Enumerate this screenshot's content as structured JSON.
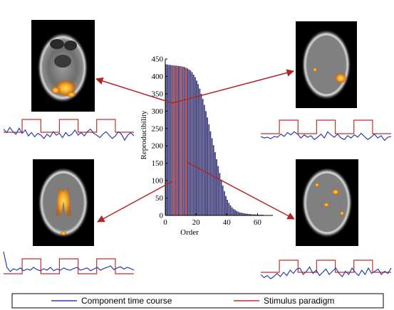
{
  "chart_data": {
    "type": "bar",
    "xlabel": "Order",
    "ylabel": "Reproducibility",
    "ylim": [
      0,
      450
    ],
    "xlim": [
      0,
      70
    ],
    "yticks": [
      0,
      50,
      100,
      150,
      200,
      250,
      300,
      350,
      400,
      450
    ],
    "xticks": [
      0,
      20,
      40,
      60
    ],
    "values": [
      435,
      434,
      433,
      433,
      432,
      432,
      431,
      431,
      430,
      430,
      429,
      428,
      427,
      425,
      423,
      420,
      417,
      412,
      405,
      398,
      388,
      378,
      365,
      350,
      335,
      318,
      300,
      282,
      262,
      242,
      222,
      202,
      182,
      162,
      142,
      122,
      103,
      86,
      70,
      56,
      45,
      36,
      29,
      23,
      19,
      16,
      13,
      11,
      9,
      8,
      7,
      6,
      5,
      5,
      4,
      4,
      3,
      3,
      3,
      2,
      2,
      2,
      2,
      2,
      1,
      1,
      1,
      1,
      1,
      1
    ],
    "highlighted_orders": [
      6,
      8,
      11,
      14
    ]
  },
  "time_courses": {
    "top_left": [
      0.15,
      0.35,
      0.05,
      0.3,
      0.45,
      0.1,
      0.4,
      0.2,
      0.55,
      0.35,
      0.6,
      0.4,
      0.5,
      0.7,
      0.45,
      0.6,
      0.3,
      0.5,
      0.4,
      0.65,
      0.35,
      0.55,
      0.45,
      0.2,
      0.5,
      0.35,
      0.55,
      0.3,
      0.15,
      0.4,
      0.5,
      0.65,
      0.45,
      0.3,
      0.5,
      0.7,
      0.55,
      0.3,
      0.45,
      0.8,
      0.5,
      0.35,
      0.55
    ],
    "top_right": [
      0.45,
      0.55,
      0.5,
      0.6,
      0.45,
      0.5,
      0.3,
      0.45,
      0.2,
      0.35,
      0.15,
      0.3,
      0.55,
      0.35,
      0.5,
      0.4,
      0.65,
      0.5,
      0.3,
      0.55,
      0.15,
      0.35,
      0.5,
      0.3,
      0.55,
      0.65,
      0.4,
      0.55,
      0.35,
      0.5,
      0.25,
      0.45,
      0.65,
      0.5,
      0.3,
      0.55,
      0.4,
      0.7,
      0.5,
      0.45
    ],
    "bottom_left": [
      0.05,
      0.6,
      0.75,
      0.65,
      0.7,
      0.62,
      0.72,
      0.66,
      0.7,
      0.6,
      0.68,
      0.72,
      0.65,
      0.7,
      0.6,
      0.72,
      0.66,
      0.7,
      0.62,
      0.68,
      0.7,
      0.64,
      0.6,
      0.7,
      0.66,
      0.62,
      0.72,
      0.66,
      0.6,
      0.7,
      0.64,
      0.6,
      0.55,
      0.68,
      0.62,
      0.58,
      0.66,
      0.6,
      0.64,
      0.7
    ],
    "bottom_right": [
      0.6,
      0.75,
      0.65,
      0.8,
      0.7,
      0.55,
      0.7,
      0.5,
      0.65,
      0.4,
      0.55,
      0.35,
      0.3,
      0.6,
      0.45,
      0.25,
      0.55,
      0.4,
      0.65,
      0.5,
      0.35,
      0.6,
      0.45,
      0.3,
      0.55,
      0.7,
      0.45,
      0.6,
      0.3,
      0.5,
      0.65,
      0.4,
      0.6,
      0.3,
      0.55,
      0.45,
      0.35,
      0.6,
      0.45,
      0.55,
      0.3
    ]
  },
  "legend": {
    "component_label": "Component time course",
    "stimulus_label": "Stimulus paradigm",
    "component_color": "#2b3fa8",
    "stimulus_color": "#c0302b"
  },
  "colors": {
    "bar_fill": "#3d3a78",
    "highlight_bar": "#c0302b",
    "arrow": "#b52424",
    "activation": "#f2a11e"
  }
}
